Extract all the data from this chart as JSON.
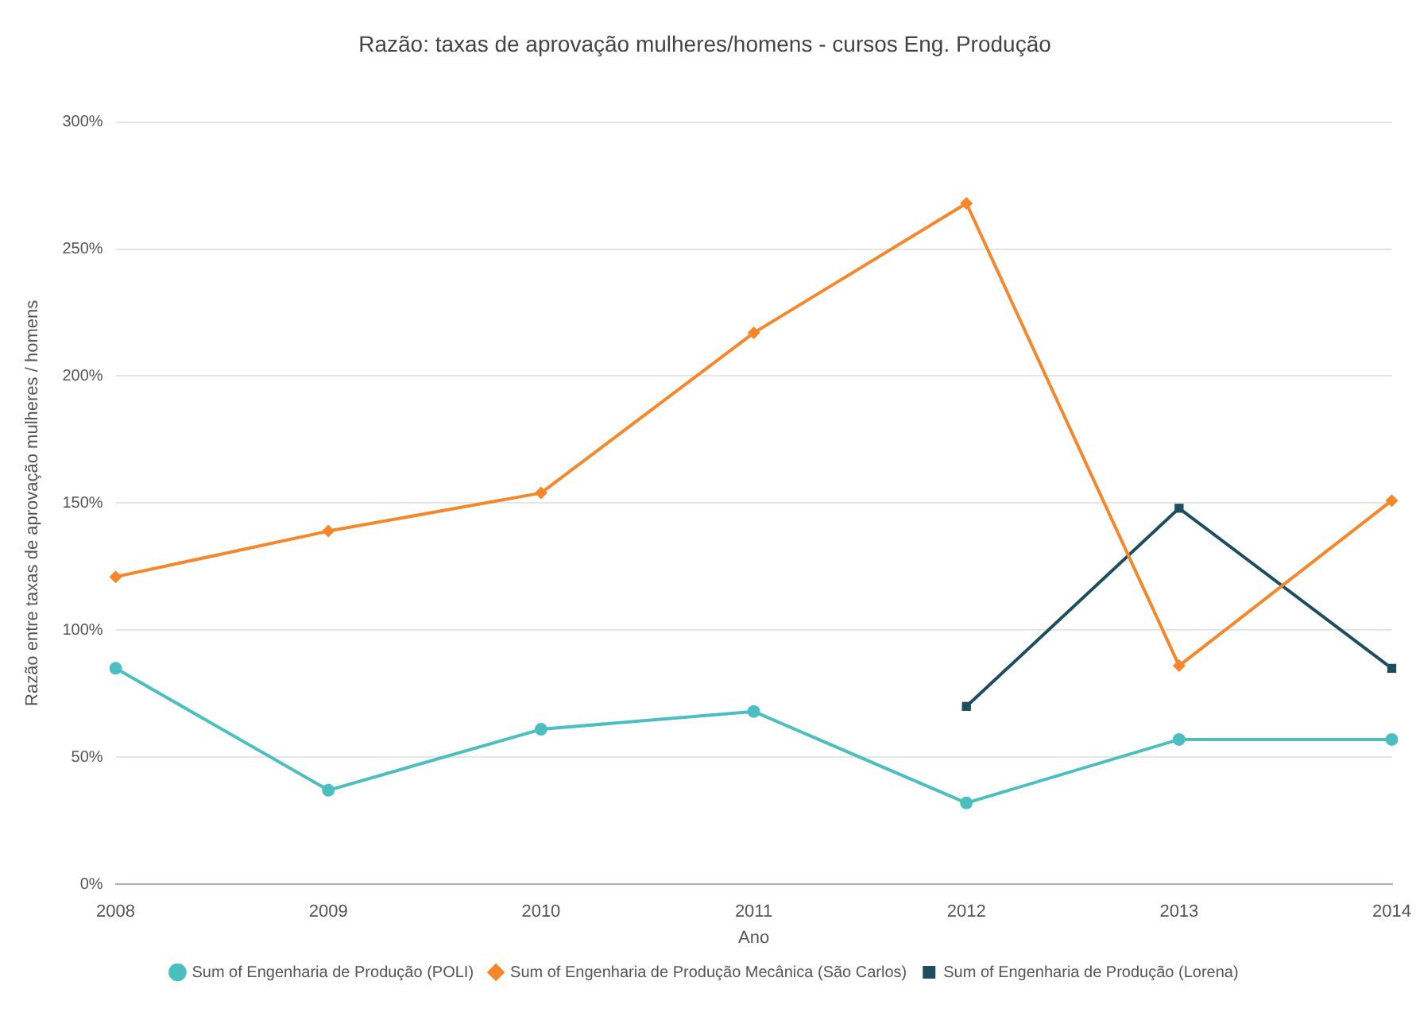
{
  "chart_data": {
    "type": "line",
    "title": "Razão: taxas de aprovação mulheres/homens - cursos Eng. Produção",
    "xlabel": "Ano",
    "ylabel": "Razão entre taxas de aprovação mulheres / homens",
    "categories": [
      "2008",
      "2009",
      "2010",
      "2011",
      "2012",
      "2013",
      "2014"
    ],
    "series": [
      {
        "name": "Sum of Engenharia de Produção (POLI)",
        "color": "#4bbfc0",
        "marker": "circle",
        "values": [
          85,
          37,
          61,
          68,
          32,
          57,
          57
        ]
      },
      {
        "name": "Sum of Engenharia de Produção Mecânica (São Carlos)",
        "color": "#f5872a",
        "marker": "diamond",
        "values": [
          121,
          139,
          154,
          217,
          268,
          86,
          151
        ]
      },
      {
        "name": "Sum of Engenharia de Produção (Lorena)",
        "color": "#1d4e5f",
        "marker": "square",
        "values": [
          null,
          null,
          null,
          null,
          70,
          148,
          85
        ]
      }
    ],
    "ylim": [
      0,
      300
    ],
    "yticks": [
      {
        "value": 0,
        "label": "0%"
      },
      {
        "value": 50,
        "label": "50%"
      },
      {
        "value": 100,
        "label": "100%"
      },
      {
        "value": 150,
        "label": "150%"
      },
      {
        "value": 200,
        "label": "200%"
      },
      {
        "value": 250,
        "label": "250%"
      },
      {
        "value": 300,
        "label": "300%"
      }
    ],
    "grid": "y",
    "legend": "bottom",
    "line_style": "solid"
  }
}
